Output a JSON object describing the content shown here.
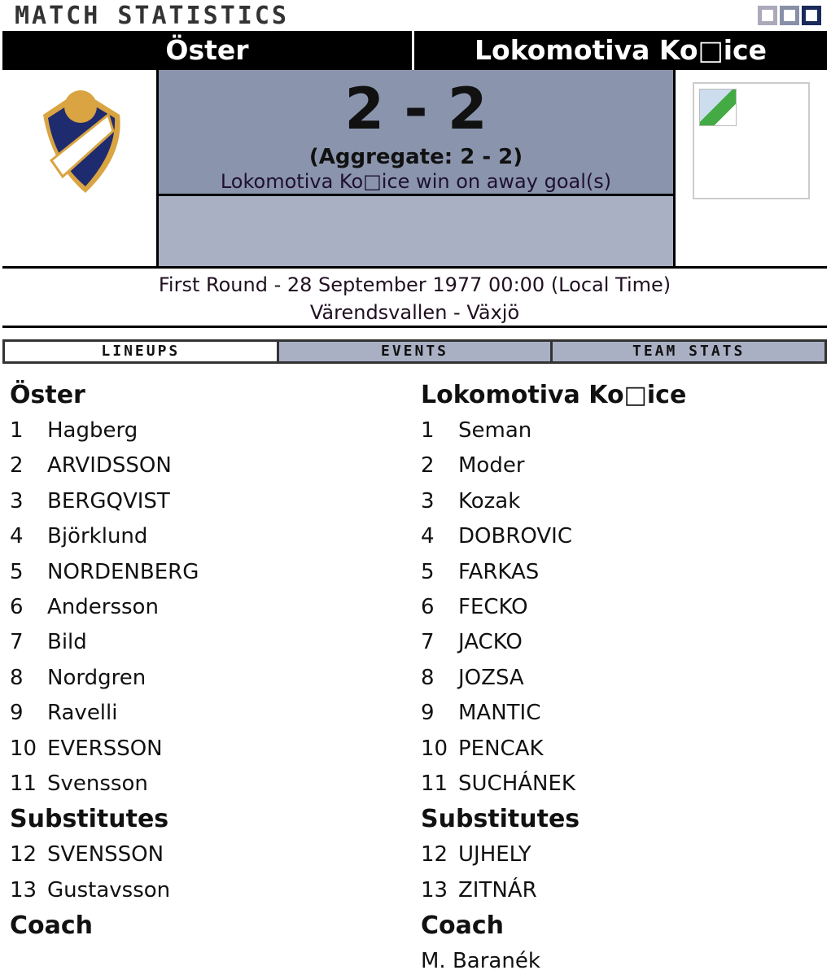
{
  "title": "Match Statistics",
  "home": {
    "name": "Öster"
  },
  "away": {
    "name": "Lokomotiva Ko□ice"
  },
  "score": "2 - 2",
  "aggregate": "(Aggregate: 2 - 2)",
  "note": "Lokomotiva Ko□ice win on away goal(s)",
  "info": {
    "line1": "First Round - 28 September 1977 00:00 (Local Time)",
    "line2": "Värendsvallen - Växjö"
  },
  "tabs": [
    {
      "label": "Lineups",
      "active": true
    },
    {
      "label": "Events"
    },
    {
      "label": "Team Stats"
    }
  ],
  "lineups": {
    "subs_label": "Substitutes",
    "coach_label": "Coach",
    "home": {
      "team": "Öster",
      "players": [
        [
          "1",
          "Hagberg"
        ],
        [
          "2",
          "ARVIDSSON"
        ],
        [
          "3",
          "BERGQVIST"
        ],
        [
          "4",
          "Björklund"
        ],
        [
          "5",
          "NORDENBERG"
        ],
        [
          "6",
          "Andersson"
        ],
        [
          "7",
          "Bild"
        ],
        [
          "8",
          "Nordgren"
        ],
        [
          "9",
          "Ravelli"
        ],
        [
          "10",
          "EVERSSON"
        ],
        [
          "11",
          "Svensson"
        ]
      ],
      "subs": [
        [
          "12",
          "SVENSSON"
        ],
        [
          "13",
          "Gustavsson"
        ]
      ],
      "coach": ""
    },
    "away": {
      "team": "Lokomotiva Ko□ice",
      "players": [
        [
          "1",
          "Seman"
        ],
        [
          "2",
          "Moder"
        ],
        [
          "3",
          "Kozak"
        ],
        [
          "4",
          "DOBROVIC"
        ],
        [
          "5",
          "FARKAS"
        ],
        [
          "6",
          "FECKO"
        ],
        [
          "7",
          "JACKO"
        ],
        [
          "8",
          "JOZSA"
        ],
        [
          "9",
          "MANTIC"
        ],
        [
          "10",
          "PENCAK"
        ],
        [
          "11",
          "SUCHÁNEK"
        ]
      ],
      "subs": [
        [
          "12",
          "UJHELY"
        ],
        [
          "13",
          "ZITNÁR"
        ]
      ],
      "coach": "M. Baranék"
    }
  }
}
